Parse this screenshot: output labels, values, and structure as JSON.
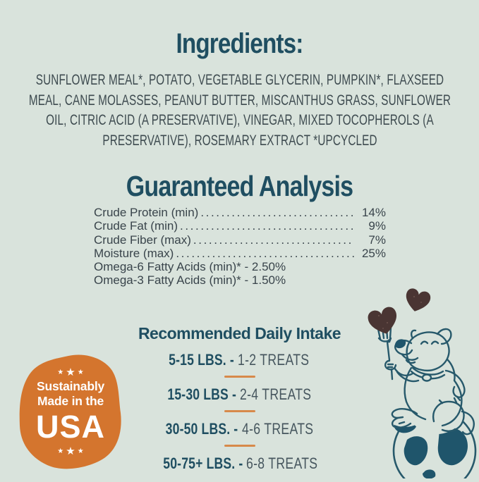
{
  "colors": {
    "background": "#d9e3dc",
    "heading_teal": "#1f4e61",
    "body_text": "#3d4a4f",
    "analysis_text": "#39444b",
    "badge_orange": "#d4752e",
    "divider_orange": "#d7894a",
    "line_art_teal": "#27596b",
    "treat_brown": "#4a3533",
    "badge_text": "#ffffff"
  },
  "ingredients": {
    "title": "Ingredients:",
    "lines": [
      "SUNFLOWER MEAL*, POTATO, VEGETABLE GLYCERIN, PUMPKIN*, FLAXSEED",
      "MEAL, CANE MOLASSES, PEANUT BUTTER, MISCANTHUS GRASS, SUNFLOWER",
      "OIL, CITRIC ACID (A PRESERVATIVE), VINEGAR, MIXED TOCOPHEROLS (A",
      "PRESERVATIVE), ROSEMARY EXTRACT *UPCYCLED"
    ]
  },
  "guaranteed_analysis": {
    "title": "Guaranteed Analysis",
    "rows": [
      {
        "label": "Crude Protein (min) ",
        "value": "14%",
        "dotted": true
      },
      {
        "label": "Crude Fat (min) ",
        "value": "9%",
        "dotted": true
      },
      {
        "label": "Crude Fiber (max) ",
        "value": "7%",
        "dotted": true
      },
      {
        "label": "Moisture (max)",
        "value": "25%",
        "dotted": true
      },
      {
        "label": "Omega-6 Fatty Acids (min)* - 2.50%",
        "value": "",
        "dotted": false
      },
      {
        "label": "Omega-3 Fatty Acids (min)* - 1.50%",
        "value": "",
        "dotted": false
      }
    ]
  },
  "daily_intake": {
    "title": "Recommended Daily Intake",
    "rows": [
      {
        "weight": "5-15 LBS. -",
        "treats": "1-2 TREATS"
      },
      {
        "weight": "15-30 LBS -",
        "treats": "2-4 TREATS"
      },
      {
        "weight": "30-50 LBS. -",
        "treats": "4-6 TREATS"
      },
      {
        "weight": "50-75+ LBS. -",
        "treats": "6-8 TREATS"
      }
    ]
  },
  "badge": {
    "stars": "★★★",
    "line1": "Sustainably",
    "line2": "Made in the",
    "line3": "USA"
  },
  "illustration": {
    "name": "dog-with-fork-heart-treats-on-globe"
  }
}
